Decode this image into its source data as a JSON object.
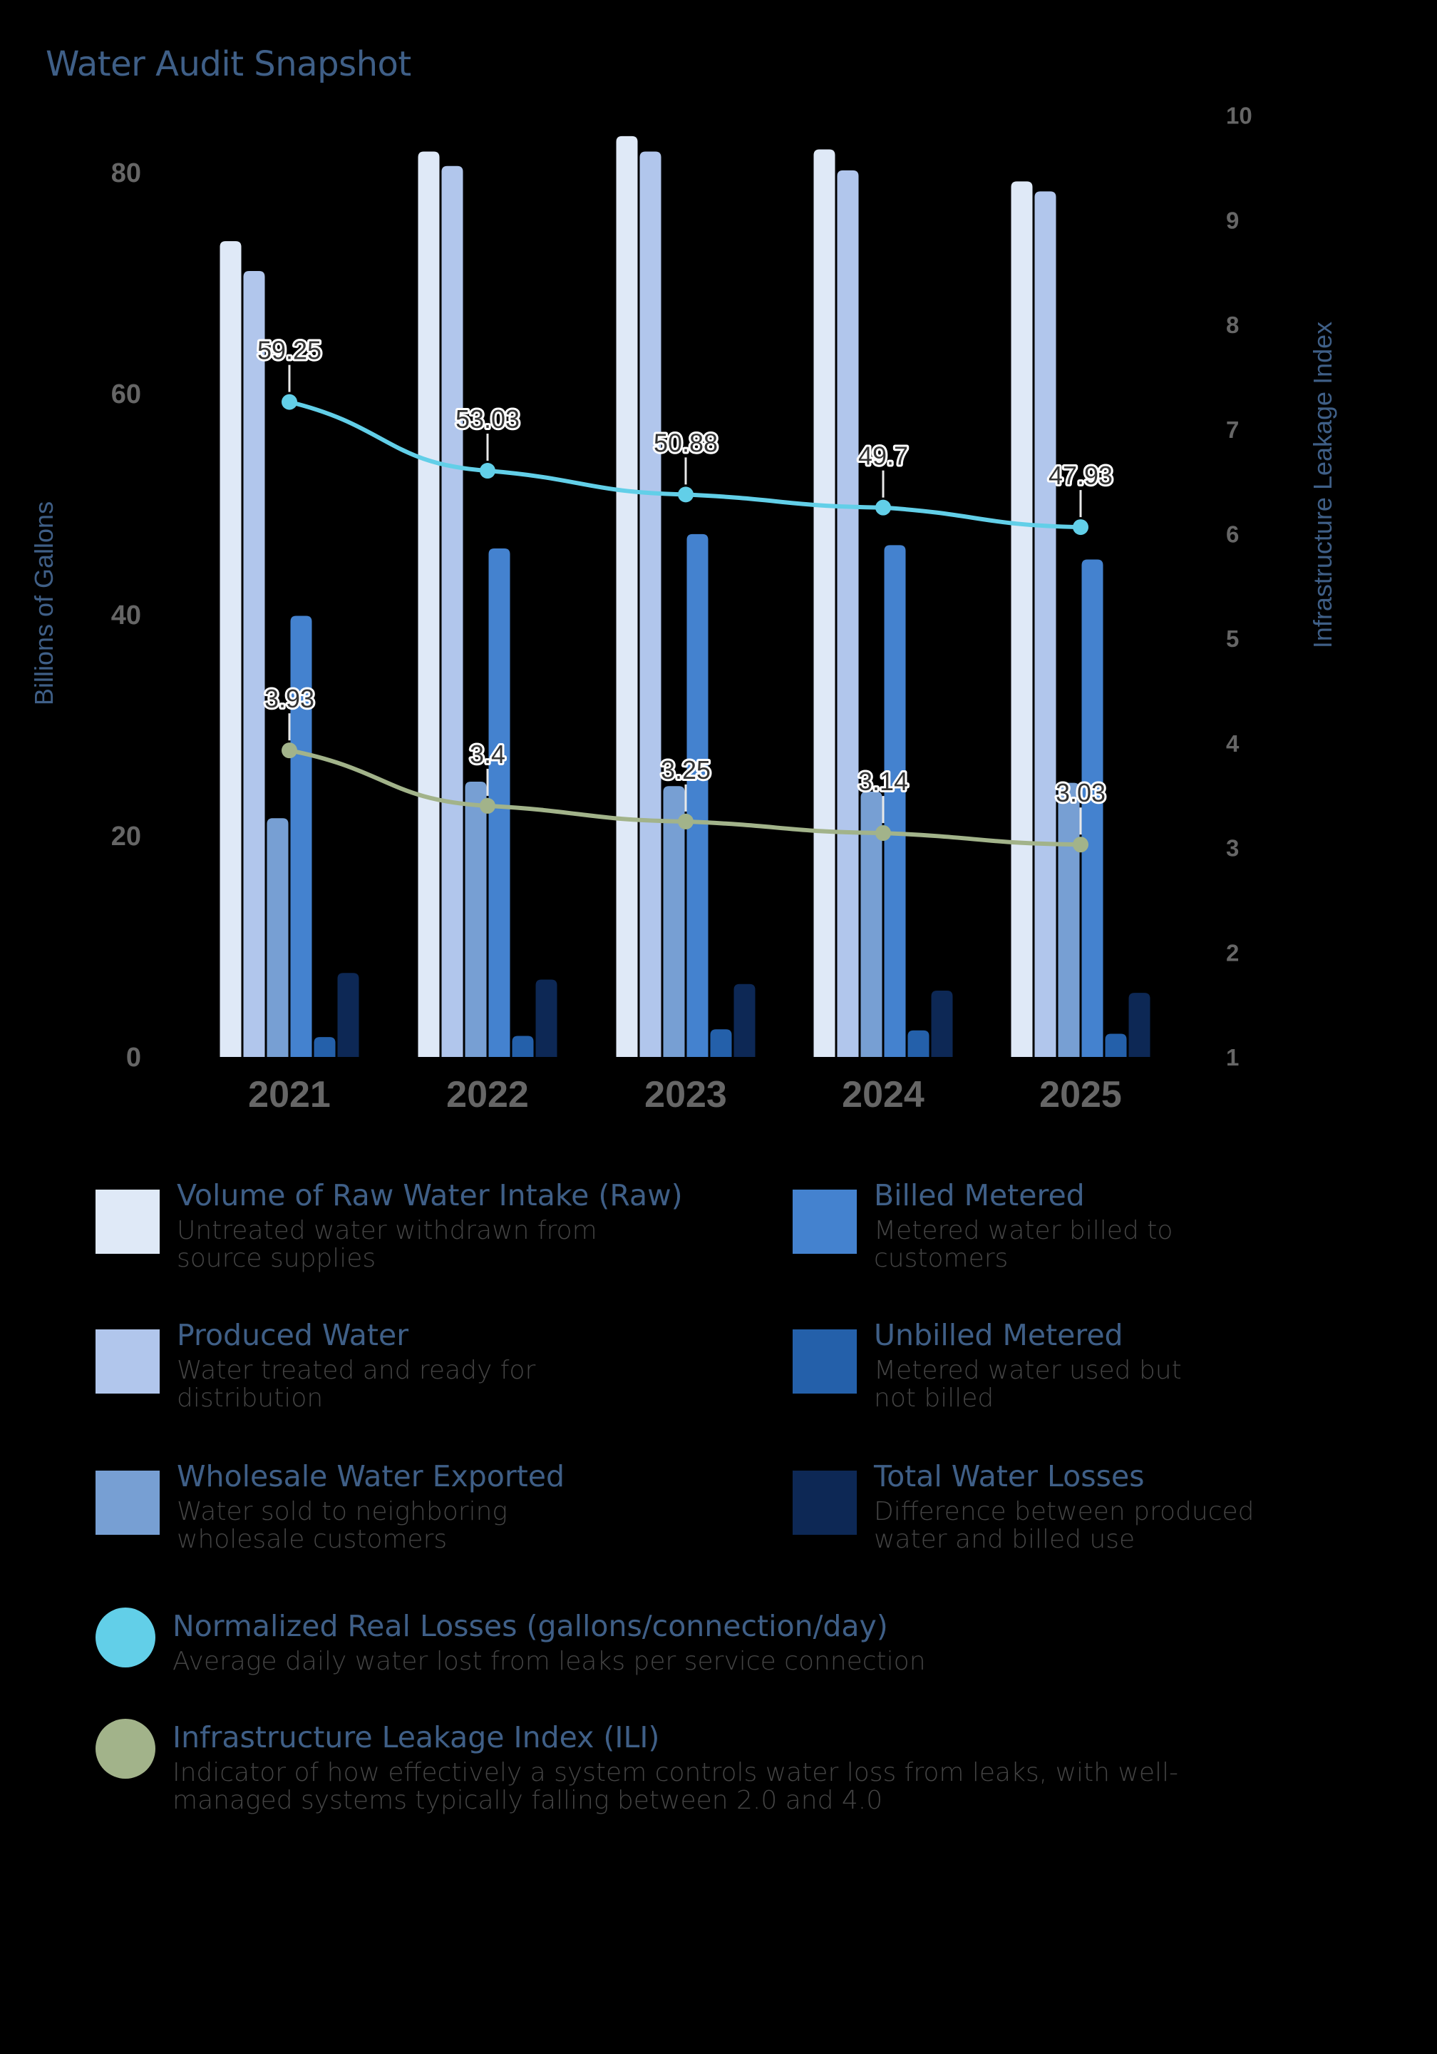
{
  "title": "Water Audit Snapshot",
  "axes": {
    "left_label": "Billions of Gallons",
    "right_label": "Infrastructure Leakage Index",
    "left_ticks": [
      "0",
      "20",
      "40",
      "60",
      "80"
    ],
    "right_ticks": [
      "1",
      "2",
      "3",
      "4",
      "5",
      "6",
      "7",
      "8",
      "9",
      "10"
    ],
    "x_ticks": [
      "2021",
      "2022",
      "2023",
      "2024",
      "2025"
    ]
  },
  "colors": {
    "raw": "#dfe9f7",
    "produced": "#b1c6ec",
    "wholesale": "#779fd3",
    "billed": "#4482cf",
    "unbilled": "#2460aa",
    "losses": "#0d2855",
    "nrl_line": "#62cfe8",
    "ili_line": "#a2b38a",
    "title": "#3f5f87",
    "tick": "#666666"
  },
  "legend": {
    "items": [
      {
        "key": "raw",
        "title": "Volume of Raw Water Intake (Raw)",
        "desc_1": "Untreated water withdrawn from",
        "desc_2": "source supplies"
      },
      {
        "key": "billed",
        "title": "Billed Metered",
        "desc_1": "Metered water billed to",
        "desc_2": "customers"
      },
      {
        "key": "produced",
        "title": "Produced Water",
        "desc_1": "Water treated and ready for",
        "desc_2": "distribution"
      },
      {
        "key": "unbilled",
        "title": "Unbilled Metered",
        "desc_1": "Metered water used but",
        "desc_2": "not billed"
      },
      {
        "key": "wholesale",
        "title": "Wholesale Water Exported",
        "desc_1": "Water sold to neighboring",
        "desc_2": "wholesale customers"
      },
      {
        "key": "losses",
        "title": "Total Water Losses",
        "desc_1": "Difference between produced",
        "desc_2": "water and billed use"
      },
      {
        "key": "nrl",
        "title": "Normalized Real Losses (gallons/connection/day)",
        "desc_1": "Average daily water lost from leaks per service connection",
        "desc_2": ""
      },
      {
        "key": "ili",
        "title": "Infrastructure Leakage Index (ILI)",
        "desc_1": "Indicator of how effectively a system controls water loss from leaks, with well-",
        "desc_2": "managed systems typically falling between 2.0 and 4.0"
      }
    ]
  },
  "chart_data": {
    "type": "bar",
    "title": "Water Audit Snapshot",
    "xlabel": "",
    "ylabel": "Billions of Gallons",
    "y2label": "Infrastructure Leakage Index",
    "ylim": [
      0,
      85
    ],
    "y2lim": [
      1,
      10
    ],
    "grid": false,
    "legend_position": "bottom",
    "categories": [
      "2021",
      "2022",
      "2023",
      "2024",
      "2025"
    ],
    "series": [
      {
        "name": "Volume of Raw Water Intake (Raw)",
        "type": "bar",
        "axis": "left",
        "values": [
          73.8,
          81.9,
          83.3,
          82.1,
          79.2
        ]
      },
      {
        "name": "Produced Water",
        "type": "bar",
        "axis": "left",
        "values": [
          71.1,
          80.6,
          81.9,
          80.2,
          78.3
        ]
      },
      {
        "name": "Wholesale Water Exported",
        "type": "bar",
        "axis": "left",
        "values": [
          21.6,
          24.9,
          24.5,
          24.0,
          24.8
        ]
      },
      {
        "name": "Billed Metered",
        "type": "bar",
        "axis": "left",
        "values": [
          39.9,
          46.0,
          47.3,
          46.3,
          45.0
        ]
      },
      {
        "name": "Unbilled Metered",
        "type": "bar",
        "axis": "left",
        "values": [
          1.8,
          1.9,
          2.5,
          2.4,
          2.1
        ]
      },
      {
        "name": "Total Water Losses",
        "type": "bar",
        "axis": "left",
        "values": [
          7.6,
          7.0,
          6.6,
          6.0,
          5.8
        ]
      },
      {
        "name": "Normalized Real Losses (gallons/connection/day)",
        "type": "line",
        "axis": "left",
        "values": [
          59.25,
          53.03,
          50.88,
          49.7,
          47.93
        ],
        "labels": [
          "59.25",
          "53.03",
          "50.88",
          "49.7",
          "47.93"
        ]
      },
      {
        "name": "Infrastructure Leakage Index (ILI)",
        "type": "line",
        "axis": "right",
        "values": [
          3.93,
          3.4,
          3.25,
          3.14,
          3.03
        ],
        "labels": [
          "3.93",
          "3.4",
          "3.25",
          "3.14",
          "3.03"
        ]
      }
    ]
  }
}
